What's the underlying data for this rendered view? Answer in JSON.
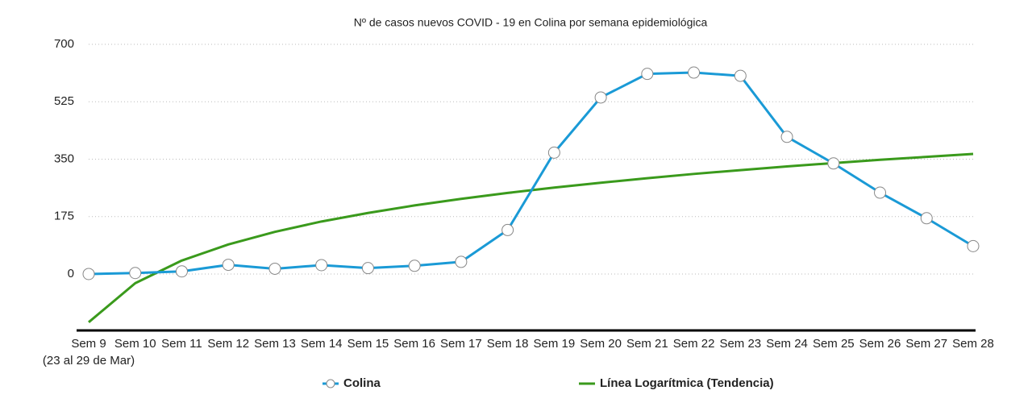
{
  "chart_data": {
    "type": "line",
    "title": "Nº de casos nuevos COVID - 19 en Colina por semana epidemiológica",
    "categories": [
      "Sem 9",
      "Sem 10",
      "Sem 11",
      "Sem 12",
      "Sem 13",
      "Sem 14",
      "Sem 15",
      "Sem 16",
      "Sem 17",
      "Sem 18",
      "Sem 19",
      "Sem 20",
      "Sem 21",
      "Sem 22",
      "Sem 23",
      "Sem 24",
      "Sem 25",
      "Sem 26",
      "Sem 27",
      "Sem 28"
    ],
    "category_note": "(23 al 29 de Mar)",
    "series": [
      {
        "name": "Colina",
        "color": "#1a9ad6",
        "markers": true,
        "values": [
          0,
          3,
          8,
          28,
          16,
          27,
          18,
          25,
          37,
          134,
          370,
          538,
          610,
          614,
          604,
          418,
          337,
          248,
          170,
          85
        ]
      },
      {
        "name": "Línea Logarítmica (Tendencia)",
        "color": "#3a9a1c",
        "markers": false,
        "values": [
          -147,
          -28,
          41,
          90,
          128.5,
          160,
          186,
          209,
          229,
          247,
          263.5,
          278,
          292,
          305,
          316.6,
          328,
          338,
          348,
          357,
          366
        ]
      }
    ],
    "ylim": [
      -172,
      700
    ],
    "yticks": [
      0,
      175,
      350,
      525,
      700
    ],
    "grid": true
  }
}
